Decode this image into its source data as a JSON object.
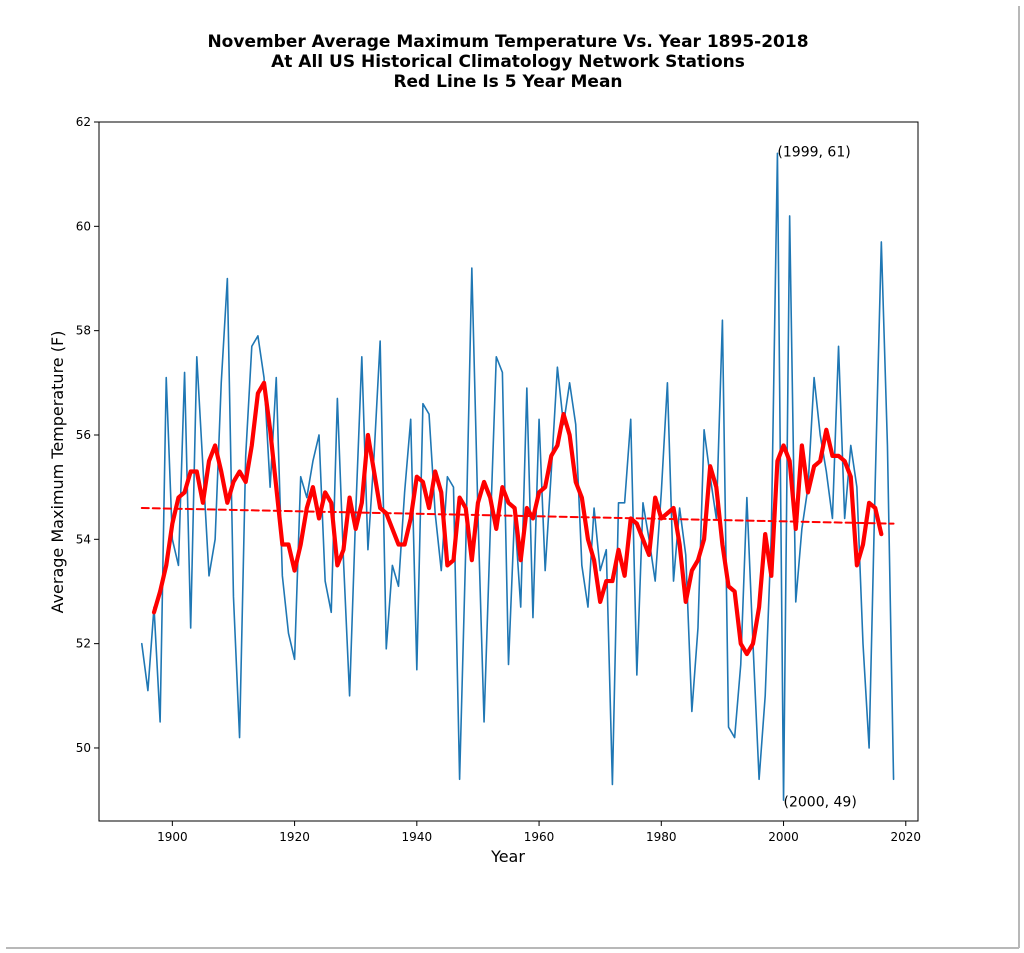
{
  "chart_data": {
    "type": "line",
    "title_lines": [
      "November Average Maximum Temperature Vs. Year 1895-2018",
      "At All US Historical Climatology Network Stations",
      "Red Line Is 5 Year Mean"
    ],
    "xlabel": "Year",
    "ylabel": "Average Maximum Temperature (F)",
    "xlim": [
      1888,
      2022
    ],
    "ylim": [
      48.6,
      62
    ],
    "x_ticks": [
      1900,
      1920,
      1940,
      1960,
      1980,
      2000,
      2020
    ],
    "y_ticks": [
      50,
      52,
      54,
      56,
      58,
      60,
      62
    ],
    "grid": false,
    "colors": {
      "annual": "#1f77b4",
      "mean": "#ff0000",
      "trend": "#ff0000"
    },
    "series": [
      {
        "style": "solid-blue",
        "x": [
          1895,
          1896,
          1897,
          1898,
          1899,
          1900,
          1901,
          1902,
          1903,
          1904,
          1905,
          1906,
          1907,
          1908,
          1909,
          1910,
          1911,
          1912,
          1913,
          1914,
          1915,
          1916,
          1917,
          1918,
          1919,
          1920,
          1921,
          1922,
          1923,
          1924,
          1925,
          1926,
          1927,
          1928,
          1929,
          1930,
          1931,
          1932,
          1933,
          1934,
          1935,
          1936,
          1937,
          1938,
          1939,
          1940,
          1941,
          1942,
          1943,
          1944,
          1945,
          1946,
          1947,
          1948,
          1949,
          1950,
          1951,
          1952,
          1953,
          1954,
          1955,
          1956,
          1957,
          1958,
          1959,
          1960,
          1961,
          1962,
          1963,
          1964,
          1965,
          1966,
          1967,
          1968,
          1969,
          1970,
          1971,
          1972,
          1973,
          1974,
          1975,
          1976,
          1977,
          1978,
          1979,
          1980,
          1981,
          1982,
          1983,
          1984,
          1985,
          1986,
          1987,
          1988,
          1989,
          1990,
          1991,
          1992,
          1993,
          1994,
          1995,
          1996,
          1997,
          1998,
          1999,
          2000,
          2001,
          2002,
          2003,
          2004,
          2005,
          2006,
          2007,
          2008,
          2009,
          2010,
          2011,
          2012,
          2013,
          2014,
          2015,
          2016,
          2017,
          2018
        ],
        "y": [
          52.0,
          51.1,
          52.7,
          50.5,
          57.1,
          54.0,
          53.5,
          57.2,
          52.3,
          57.5,
          55.4,
          53.3,
          54.0,
          57.0,
          59.0,
          52.9,
          50.2,
          55.6,
          57.7,
          57.9,
          57.1,
          55.0,
          57.1,
          53.3,
          52.2,
          51.7,
          55.2,
          54.8,
          55.5,
          56.0,
          53.2,
          52.6,
          56.7,
          53.6,
          51.0,
          54.5,
          57.5,
          53.8,
          55.6,
          57.8,
          51.9,
          53.5,
          53.1,
          54.9,
          56.3,
          51.5,
          56.6,
          56.4,
          54.5,
          53.4,
          55.2,
          55.0,
          49.4,
          53.8,
          59.2,
          54.5,
          50.5,
          54.1,
          57.5,
          57.2,
          51.6,
          54.5,
          52.7,
          56.9,
          52.5,
          56.3,
          53.4,
          55.3,
          57.3,
          56.2,
          57.0,
          56.2,
          53.5,
          52.7,
          54.6,
          53.4,
          53.8,
          49.3,
          54.7,
          54.7,
          56.3,
          51.4,
          54.7,
          54.0,
          53.2,
          54.9,
          57.0,
          53.2,
          54.6,
          53.7,
          50.7,
          52.3,
          56.1,
          55.2,
          54.4,
          58.2,
          50.4,
          50.2,
          51.6,
          54.8,
          52.0,
          49.4,
          51.0,
          54.1,
          61.4,
          49.0,
          60.2,
          52.8,
          54.2,
          55.0,
          57.1,
          56.0,
          55.3,
          54.4,
          57.7,
          54.4,
          55.8,
          55.0,
          52.0,
          50.0,
          55.1,
          59.7,
          55.8,
          49.4
        ]
      },
      {
        "style": "thick-red",
        "x": [
          1897,
          1898,
          1899,
          1900,
          1901,
          1902,
          1903,
          1904,
          1905,
          1906,
          1907,
          1908,
          1909,
          1910,
          1911,
          1912,
          1913,
          1914,
          1915,
          1916,
          1917,
          1918,
          1919,
          1920,
          1921,
          1922,
          1923,
          1924,
          1925,
          1926,
          1927,
          1928,
          1929,
          1930,
          1931,
          1932,
          1933,
          1934,
          1935,
          1936,
          1937,
          1938,
          1939,
          1940,
          1941,
          1942,
          1943,
          1944,
          1945,
          1946,
          1947,
          1948,
          1949,
          1950,
          1951,
          1952,
          1953,
          1954,
          1955,
          1956,
          1957,
          1958,
          1959,
          1960,
          1961,
          1962,
          1963,
          1964,
          1965,
          1966,
          1967,
          1968,
          1969,
          1970,
          1971,
          1972,
          1973,
          1974,
          1975,
          1976,
          1977,
          1978,
          1979,
          1980,
          1981,
          1982,
          1983,
          1984,
          1985,
          1986,
          1987,
          1988,
          1989,
          1990,
          1991,
          1992,
          1993,
          1994,
          1995,
          1996,
          1997,
          1998,
          1999,
          2000,
          2001,
          2002,
          2003,
          2004,
          2005,
          2006,
          2007,
          2008,
          2009,
          2010,
          2011,
          2012,
          2013,
          2014,
          2015,
          2016
        ],
        "y": [
          52.6,
          53.0,
          53.5,
          54.3,
          54.8,
          54.9,
          55.3,
          55.3,
          54.7,
          55.5,
          55.8,
          55.3,
          54.7,
          55.1,
          55.3,
          55.1,
          55.8,
          56.8,
          57.0,
          56.1,
          55.0,
          53.9,
          53.9,
          53.4,
          53.9,
          54.6,
          55.0,
          54.4,
          54.9,
          54.7,
          53.5,
          53.8,
          54.8,
          54.2,
          54.7,
          56.0,
          55.3,
          54.6,
          54.5,
          54.2,
          53.9,
          53.9,
          54.4,
          55.2,
          55.1,
          54.6,
          55.3,
          54.9,
          53.5,
          53.6,
          54.8,
          54.6,
          53.6,
          54.7,
          55.1,
          54.8,
          54.2,
          55.0,
          54.7,
          54.6,
          53.6,
          54.6,
          54.4,
          54.9,
          55.0,
          55.6,
          55.8,
          56.4,
          56.0,
          55.1,
          54.8,
          54.0,
          53.6,
          52.8,
          53.2,
          53.2,
          53.8,
          53.3,
          54.4,
          54.3,
          54.0,
          53.7,
          54.8,
          54.4,
          54.5,
          54.6,
          53.9,
          52.8,
          53.4,
          53.6,
          54.0,
          55.4,
          55.0,
          53.9,
          53.1,
          53.0,
          52.0,
          51.8,
          52.0,
          52.7,
          54.1,
          53.3,
          55.5,
          55.8,
          55.5,
          54.2,
          55.8,
          54.9,
          55.4,
          55.5,
          56.1,
          55.6,
          55.6,
          55.5,
          55.2,
          53.5,
          53.9,
          54.7,
          54.6,
          54.1
        ]
      },
      {
        "style": "dashed-red-trend",
        "x": [
          1895,
          2018
        ],
        "y": [
          54.6,
          54.3
        ]
      }
    ],
    "annotations": [
      {
        "text": "(1999, 61)",
        "x": 1999,
        "y": 61.43
      },
      {
        "text": "(2000, 49)",
        "x": 2000,
        "y": 48.97
      }
    ]
  }
}
